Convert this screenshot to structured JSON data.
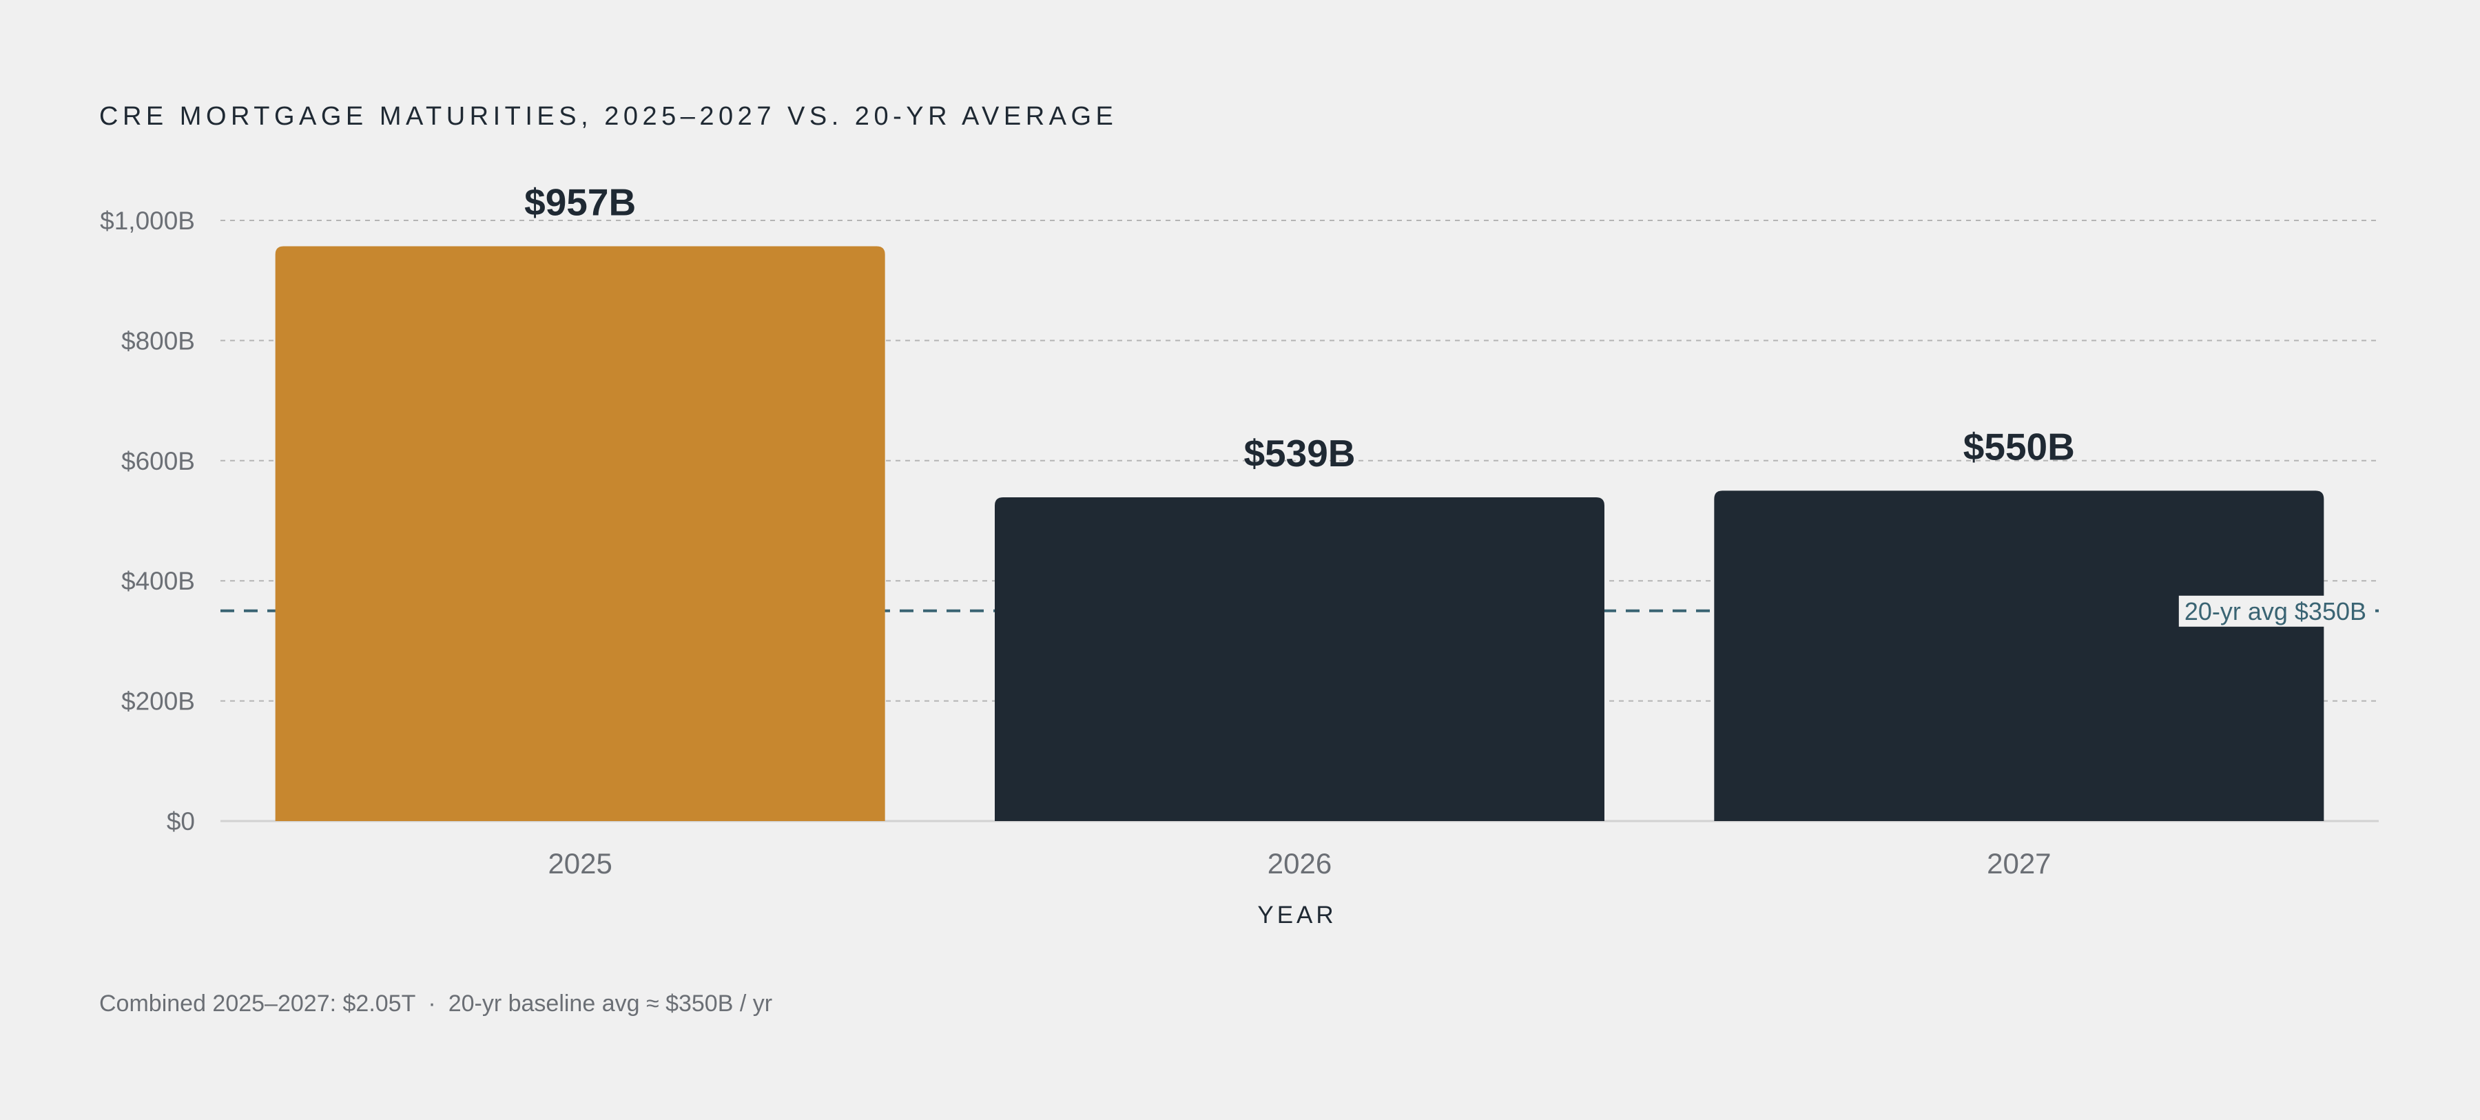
{
  "chart_data": {
    "type": "bar",
    "title": "CRE MORTGAGE MATURITIES, 2025–2027 VS. 20-YR AVERAGE",
    "xlabel": "YEAR",
    "ylabel": "",
    "categories": [
      "2025",
      "2026",
      "2027"
    ],
    "values": [
      957,
      539,
      550
    ],
    "value_labels": [
      "$957B",
      "$539B",
      "$550B"
    ],
    "bar_colors": [
      "#c7872f",
      "#1f2933",
      "#1f2933"
    ],
    "ylim": [
      0,
      1000
    ],
    "yticks": [
      0,
      200,
      400,
      600,
      800,
      1000
    ],
    "ytick_labels": [
      "$0",
      "$200B",
      "$400B",
      "$600B",
      "$800B",
      "$1,000B"
    ],
    "grid": true,
    "reference_line": {
      "value": 350,
      "label": "20-yr avg $350B",
      "color": "#3a6473"
    }
  },
  "footnote": {
    "part1": "Combined 2025–2027: $2.05T",
    "separator": "·",
    "part2": "20-yr baseline avg ≈ $350B / yr"
  }
}
